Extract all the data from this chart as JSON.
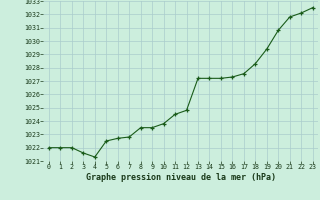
{
  "x": [
    0,
    1,
    2,
    3,
    4,
    5,
    6,
    7,
    8,
    9,
    10,
    11,
    12,
    13,
    14,
    15,
    16,
    17,
    18,
    19,
    20,
    21,
    22,
    23
  ],
  "y": [
    1022.0,
    1022.0,
    1022.0,
    1021.6,
    1021.3,
    1022.5,
    1022.7,
    1022.8,
    1023.5,
    1023.5,
    1023.8,
    1024.5,
    1024.8,
    1027.2,
    1027.2,
    1027.2,
    1027.3,
    1027.55,
    1028.3,
    1029.4,
    1030.8,
    1031.8,
    1032.1,
    1032.5
  ],
  "ylim": [
    1021,
    1033
  ],
  "yticks": [
    1021,
    1022,
    1023,
    1024,
    1025,
    1026,
    1027,
    1028,
    1029,
    1030,
    1031,
    1032,
    1033
  ],
  "xticks": [
    0,
    1,
    2,
    3,
    4,
    5,
    6,
    7,
    8,
    9,
    10,
    11,
    12,
    13,
    14,
    15,
    16,
    17,
    18,
    19,
    20,
    21,
    22,
    23
  ],
  "line_color": "#1a5c1a",
  "marker_color": "#1a5c1a",
  "bg_color": "#cceedd",
  "grid_color": "#aacccc",
  "xlabel": "Graphe pression niveau de la mer (hPa)",
  "xlabel_color": "#1a3a1a",
  "tick_color": "#1a3a1a",
  "fig_bg": "#cceedd"
}
